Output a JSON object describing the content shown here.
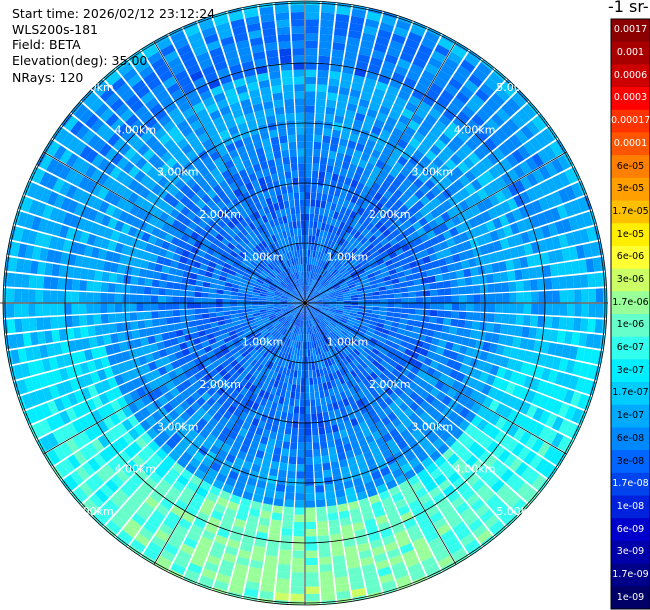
{
  "header": {
    "start_time": "Start time: 2026/02/12 23:12:24",
    "instrument": "WLS200s-181",
    "field": "Field: BETA",
    "elevation": "Elevation(deg): 35.00",
    "nrays": "NRays: 120"
  },
  "colorbar": {
    "title_fragment": "-1 sr-",
    "labels": [
      "0.0017",
      "0.001",
      "0.0006",
      "0.0003",
      "0.00017",
      "0.0001",
      "6e-05",
      "3e-05",
      "1.7e-05",
      "1e-05",
      "6e-06",
      "3e-06",
      "1.7e-06",
      "1e-06",
      "6e-07",
      "3e-07",
      "1.7e-07",
      "1e-07",
      "6e-08",
      "3e-08",
      "1.7e-08",
      "1e-08",
      "6e-09",
      "3e-09",
      "1.7e-09",
      "1e-09"
    ],
    "colors": [
      "#8b0000",
      "#a80000",
      "#cc0000",
      "#ff0000",
      "#ff3300",
      "#ff5500",
      "#ff8000",
      "#ffa000",
      "#ffc000",
      "#ffee00",
      "#ffff33",
      "#ccff66",
      "#99ff99",
      "#66ffcc",
      "#33ffee",
      "#00eeff",
      "#00ccff",
      "#00aaff",
      "#0088ff",
      "#0066ff",
      "#0044ee",
      "#0022dd",
      "#0000cc",
      "#0000aa",
      "#000088",
      "#000066"
    ]
  },
  "chart_data": {
    "type": "heatmap",
    "projection": "polar PPI",
    "field": "BETA",
    "elevation_deg": 35.0,
    "n_rays": 120,
    "range_rings_km": [
      1,
      2,
      3,
      4,
      5
    ],
    "ring_labels": [
      "1.00km",
      "2.00km",
      "3.00km",
      "4.00km",
      "5.00km"
    ],
    "spoke_angle_step_deg": 30,
    "value_scale": "log",
    "value_range": [
      1e-09,
      0.0017
    ],
    "description_bands": [
      {
        "range_km": [
          0,
          2.2
        ],
        "level": "1e-08"
      },
      {
        "range_km": [
          2.2,
          3.6
        ],
        "level": "3e-08"
      },
      {
        "range_km": [
          3.6,
          4.6
        ],
        "level": "1e-07"
      },
      {
        "range_km": [
          4.6,
          5.3
        ],
        "level": "6e-07"
      }
    ]
  }
}
